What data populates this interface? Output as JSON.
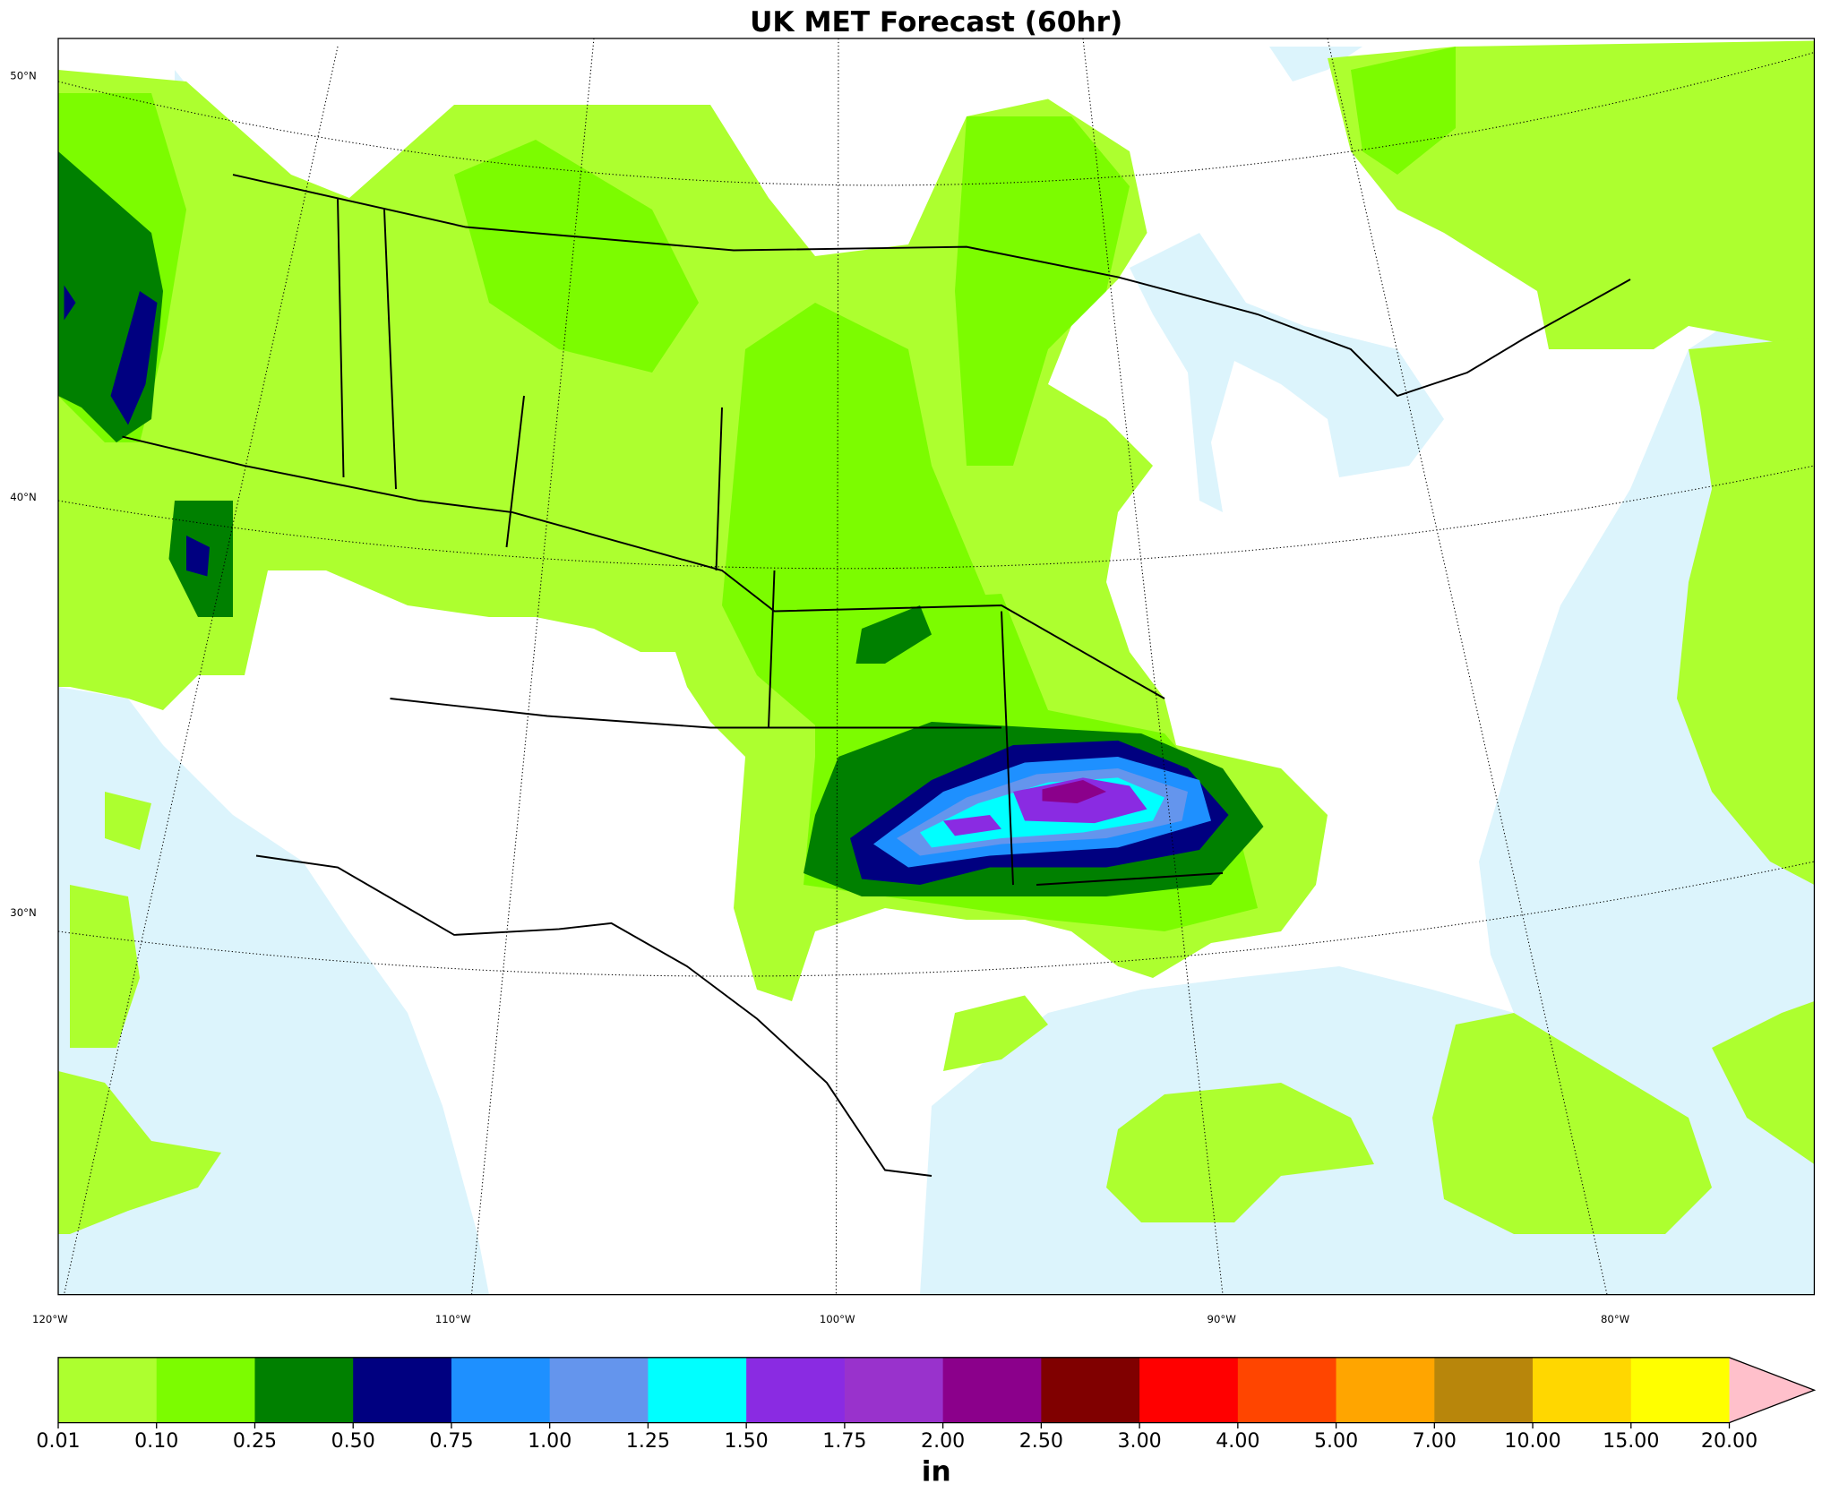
{
  "title": "UK MET Forecast (60hr)",
  "map": {
    "lat_labels": [
      "50°N",
      "40°N",
      "30°N"
    ],
    "lon_labels": [
      "120°W",
      "110°W",
      "100°W",
      "90°W",
      "80°W"
    ],
    "ocean_color": "#dcf4fc"
  },
  "colorbar": {
    "ticks": [
      0.01,
      {
        "value": 0.1,
        "label": "0.10"
      },
      0.25,
      {
        "value": 0.5,
        "label": "0.50"
      },
      0.75,
      {
        "value": 1,
        "label": "1.00"
      },
      1.25,
      {
        "value": 1.5,
        "label": "1.50"
      },
      1.75,
      {
        "value": 2,
        "label": "2.00"
      },
      {
        "value": 2.5,
        "label": "2.50"
      },
      {
        "value": 3,
        "label": "3.00"
      },
      {
        "value": 4,
        "label": "4.00"
      },
      {
        "value": 5,
        "label": "5.00"
      },
      {
        "value": 7,
        "label": "7.00"
      },
      {
        "value": 10,
        "label": "10.00"
      },
      {
        "value": 15,
        "label": "15.00"
      },
      {
        "value": 20,
        "label": "20.00"
      }
    ],
    "colors": [
      "#adff2f",
      "#7cfc00",
      "#008000",
      "#000080",
      "#1e90ff",
      "#6495ed",
      "#00ffff",
      "#8a2be2",
      "#9932cc",
      "#8b008b",
      "#800000",
      "#ff0000",
      "#ff4500",
      "#ffa500",
      "#b8860b",
      "#ffd700",
      "#ffff00"
    ],
    "over_color": "#ffc0cb",
    "unit": "in"
  }
}
